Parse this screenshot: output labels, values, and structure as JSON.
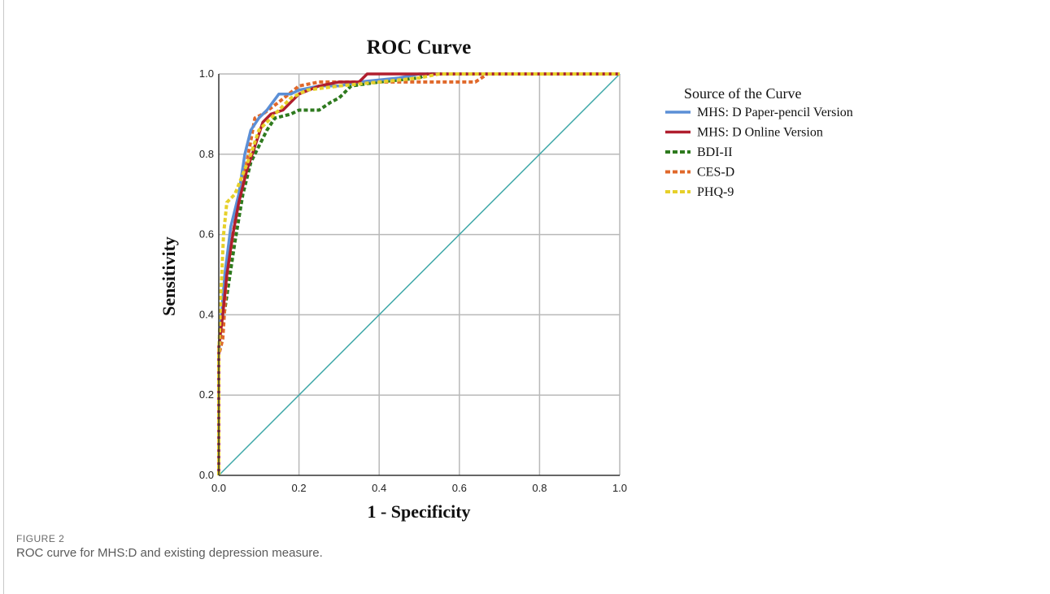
{
  "figure": {
    "label": "FIGURE 2",
    "caption": "ROC curve for MHS:D and existing depression measure."
  },
  "chart_data": {
    "type": "line",
    "title": "ROC Curve",
    "xlabel": "1 - Specificity",
    "ylabel": "Sensitivity",
    "xlim": [
      0,
      1
    ],
    "ylim": [
      0,
      1
    ],
    "xticks": [
      "0.0",
      "0.2",
      "0.4",
      "0.6",
      "0.8",
      "1.0"
    ],
    "yticks": [
      "0.0",
      "0.2",
      "0.4",
      "0.6",
      "0.8",
      "1.0"
    ],
    "grid": true,
    "legend_title": "Source of the Curve",
    "legend_position": "right",
    "reference_line": {
      "x": [
        0,
        1
      ],
      "y": [
        0,
        1
      ],
      "color": "#3fa8a8"
    },
    "series": [
      {
        "name": "MHS: D Paper-pencil Version",
        "color": "#5b8fd6",
        "dash": "solid",
        "points": [
          [
            0,
            0
          ],
          [
            0,
            0.3
          ],
          [
            0.005,
            0.38
          ],
          [
            0.015,
            0.5
          ],
          [
            0.03,
            0.62
          ],
          [
            0.05,
            0.7
          ],
          [
            0.065,
            0.8
          ],
          [
            0.08,
            0.86
          ],
          [
            0.1,
            0.89
          ],
          [
            0.12,
            0.91
          ],
          [
            0.15,
            0.95
          ],
          [
            0.18,
            0.95
          ],
          [
            0.2,
            0.96
          ],
          [
            0.25,
            0.97
          ],
          [
            0.3,
            0.97
          ],
          [
            0.35,
            0.98
          ],
          [
            0.45,
            0.99
          ],
          [
            0.5,
            1.0
          ],
          [
            1,
            1
          ]
        ]
      },
      {
        "name": "MHS: D Online Version",
        "color": "#b01e2e",
        "dash": "solid",
        "points": [
          [
            0,
            0
          ],
          [
            0,
            0.32
          ],
          [
            0.01,
            0.4
          ],
          [
            0.02,
            0.5
          ],
          [
            0.035,
            0.6
          ],
          [
            0.05,
            0.68
          ],
          [
            0.07,
            0.76
          ],
          [
            0.09,
            0.82
          ],
          [
            0.11,
            0.88
          ],
          [
            0.13,
            0.9
          ],
          [
            0.16,
            0.91
          ],
          [
            0.2,
            0.95
          ],
          [
            0.25,
            0.97
          ],
          [
            0.3,
            0.98
          ],
          [
            0.35,
            0.98
          ],
          [
            0.37,
            1.0
          ],
          [
            1,
            1
          ]
        ]
      },
      {
        "name": "BDI-II",
        "color": "#2e7a1e",
        "dash": "dash",
        "points": [
          [
            0,
            0
          ],
          [
            0,
            0.3
          ],
          [
            0.01,
            0.38
          ],
          [
            0.025,
            0.48
          ],
          [
            0.04,
            0.58
          ],
          [
            0.06,
            0.7
          ],
          [
            0.08,
            0.78
          ],
          [
            0.1,
            0.82
          ],
          [
            0.12,
            0.86
          ],
          [
            0.14,
            0.89
          ],
          [
            0.18,
            0.9
          ],
          [
            0.2,
            0.91
          ],
          [
            0.25,
            0.91
          ],
          [
            0.28,
            0.93
          ],
          [
            0.3,
            0.94
          ],
          [
            0.33,
            0.97
          ],
          [
            0.4,
            0.98
          ],
          [
            0.5,
            0.99
          ],
          [
            0.52,
            1.0
          ],
          [
            1,
            1
          ]
        ]
      },
      {
        "name": "CES-D",
        "color": "#e0682a",
        "dash": "dash",
        "points": [
          [
            0,
            0
          ],
          [
            0,
            0.3
          ],
          [
            0.01,
            0.34
          ],
          [
            0.02,
            0.5
          ],
          [
            0.035,
            0.6
          ],
          [
            0.05,
            0.68
          ],
          [
            0.07,
            0.78
          ],
          [
            0.09,
            0.89
          ],
          [
            0.11,
            0.9
          ],
          [
            0.15,
            0.93
          ],
          [
            0.2,
            0.97
          ],
          [
            0.25,
            0.98
          ],
          [
            0.35,
            0.98
          ],
          [
            0.45,
            0.98
          ],
          [
            0.55,
            0.98
          ],
          [
            0.64,
            0.98
          ],
          [
            0.67,
            1.0
          ],
          [
            1,
            1
          ]
        ]
      },
      {
        "name": "PHQ-9",
        "color": "#e6d02a",
        "dash": "dash",
        "points": [
          [
            0,
            0
          ],
          [
            0,
            0.3
          ],
          [
            0.005,
            0.45
          ],
          [
            0.012,
            0.6
          ],
          [
            0.02,
            0.68
          ],
          [
            0.04,
            0.7
          ],
          [
            0.06,
            0.75
          ],
          [
            0.08,
            0.8
          ],
          [
            0.1,
            0.86
          ],
          [
            0.12,
            0.88
          ],
          [
            0.15,
            0.91
          ],
          [
            0.18,
            0.94
          ],
          [
            0.22,
            0.96
          ],
          [
            0.3,
            0.97
          ],
          [
            0.4,
            0.98
          ],
          [
            0.5,
            0.99
          ],
          [
            0.55,
            1.0
          ],
          [
            1,
            1
          ]
        ]
      }
    ]
  }
}
